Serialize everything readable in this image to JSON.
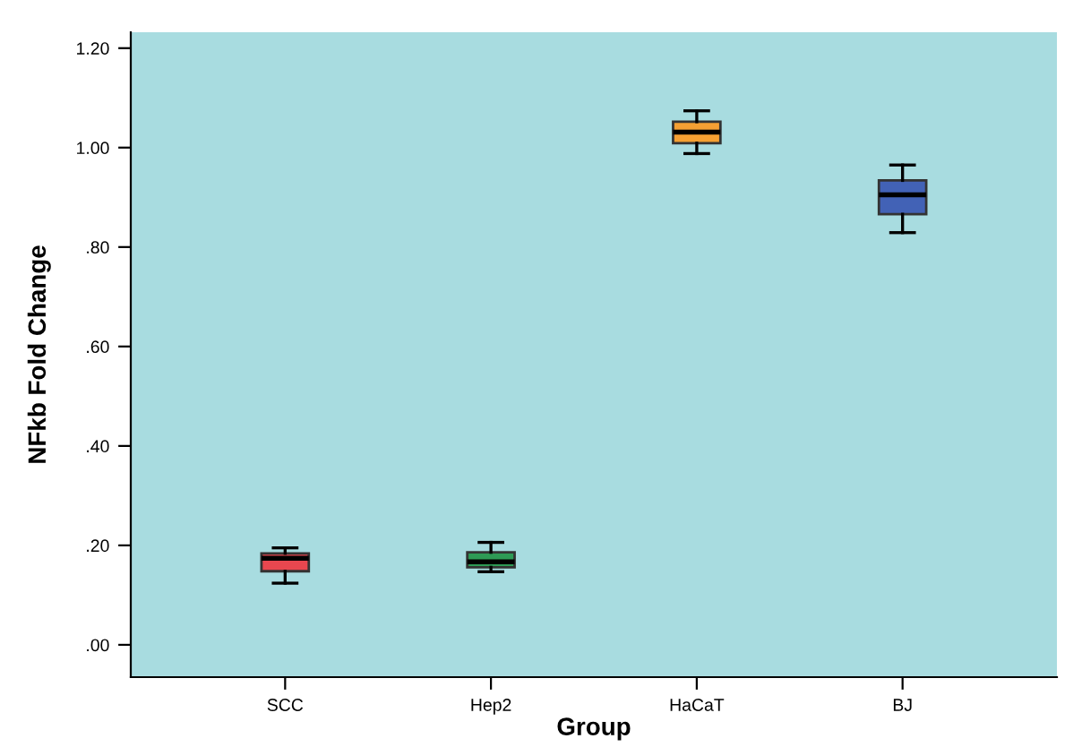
{
  "chart_data": {
    "type": "box",
    "xlabel": "Group",
    "ylabel": "NFkb Fold Change",
    "categories": [
      "SCC",
      "Hep2",
      "HaCaT",
      "BJ"
    ],
    "boxes": [
      {
        "low": 0.124,
        "q1": 0.148,
        "median": 0.174,
        "q3": 0.184,
        "high": 0.195
      },
      {
        "low": 0.147,
        "q1": 0.156,
        "median": 0.167,
        "q3": 0.186,
        "high": 0.206
      },
      {
        "low": 0.988,
        "q1": 1.009,
        "median": 1.031,
        "q3": 1.052,
        "high": 1.074
      },
      {
        "low": 0.829,
        "q1": 0.866,
        "median": 0.905,
        "q3": 0.934,
        "high": 0.965
      }
    ],
    "colors": [
      "#e8474f",
      "#2e9a55",
      "#f5a033",
      "#4262b6"
    ],
    "ylim": [
      -0.065,
      1.232
    ],
    "yticks": [
      {
        "value": 0,
        "label": ".00"
      },
      {
        "value": 0.2,
        "label": ".20"
      },
      {
        "value": 0.4,
        "label": ".40"
      },
      {
        "value": 0.6,
        "label": ".60"
      },
      {
        "value": 0.8,
        "label": ".80"
      },
      {
        "value": 1.0,
        "label": "1.00"
      },
      {
        "value": 1.2,
        "label": "1.20"
      }
    ],
    "grid": false,
    "legend": false
  }
}
